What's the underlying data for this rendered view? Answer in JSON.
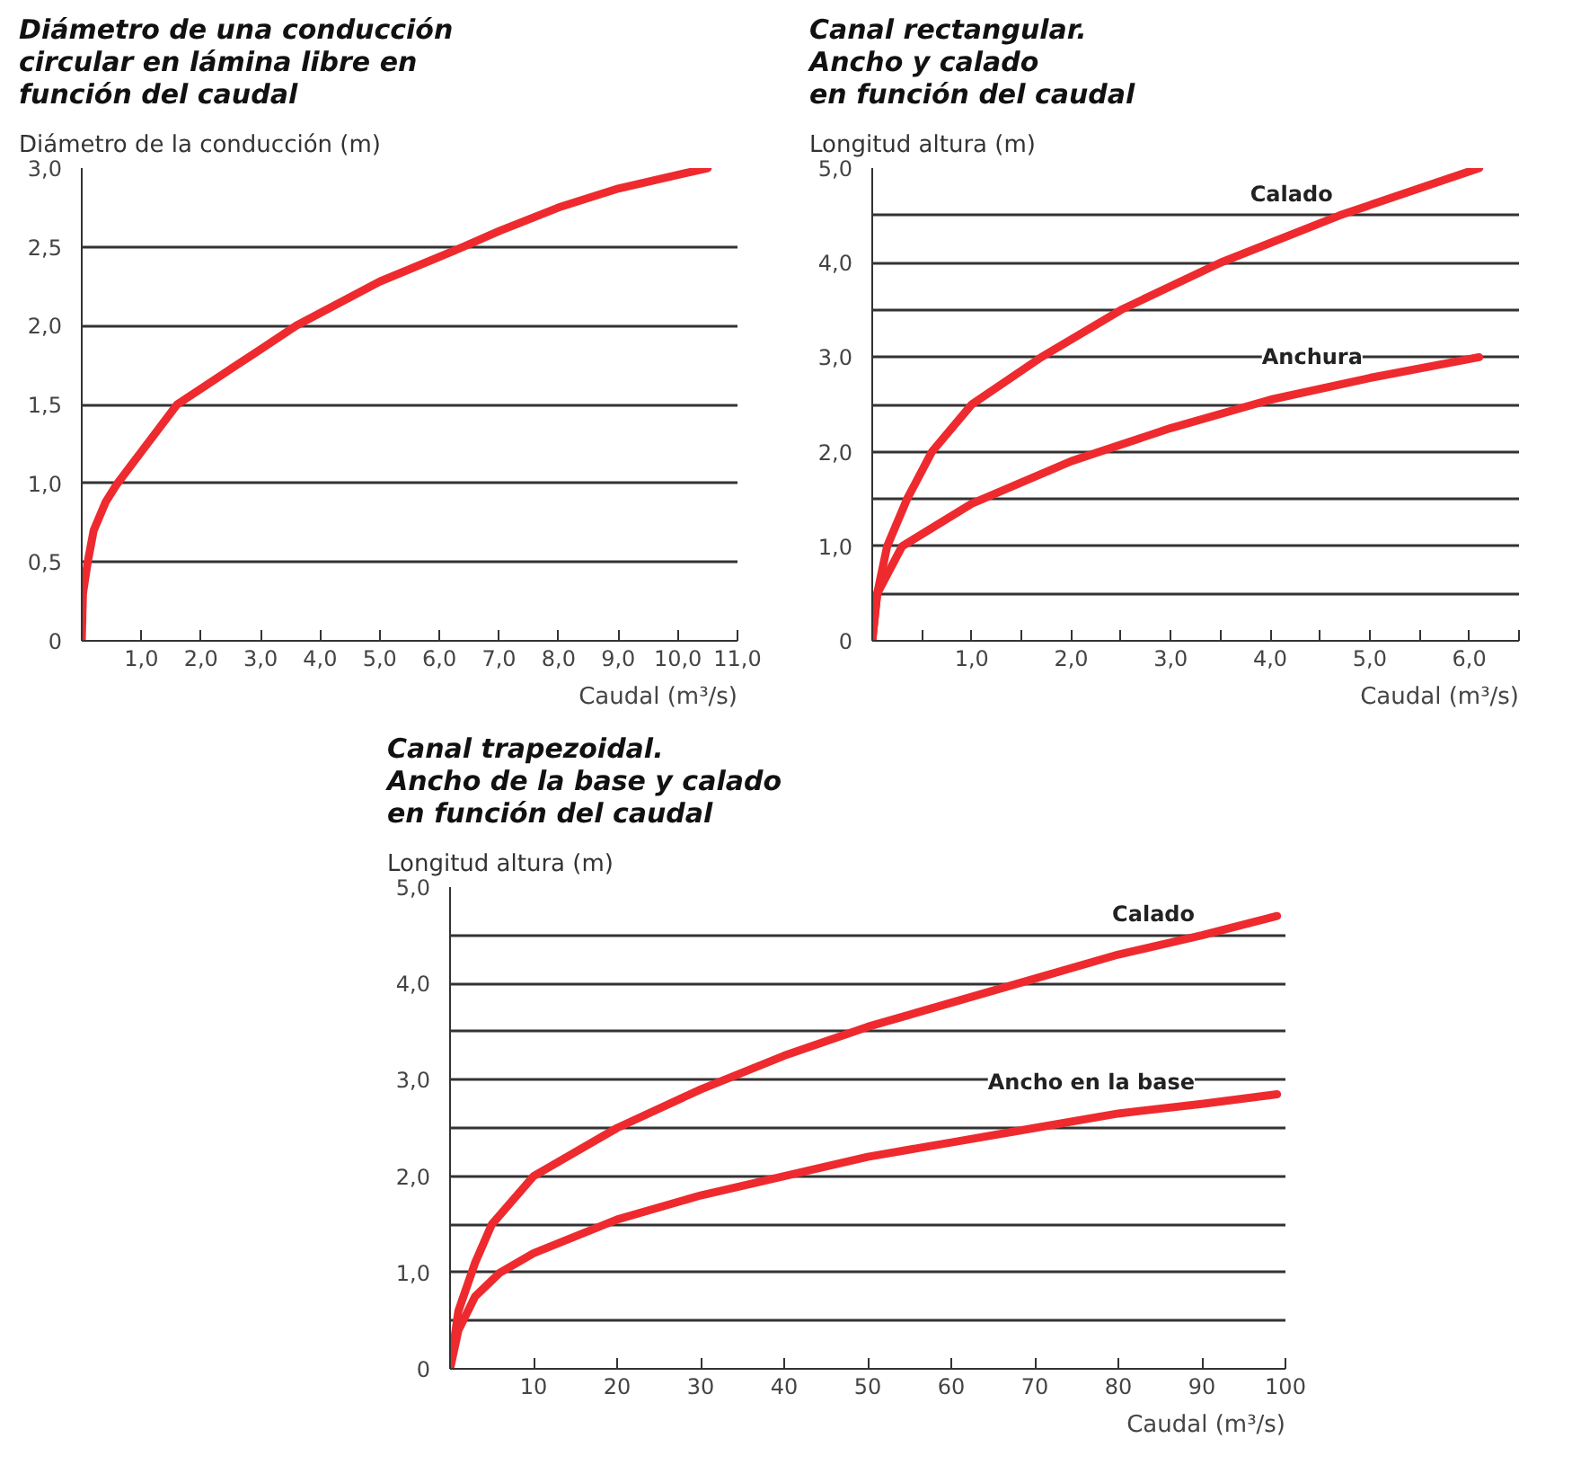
{
  "chart_data": [
    {
      "type": "line",
      "title": "Diámetro de una conducción\ncircular en lámina libre en\nfunción del caudal",
      "ylabel": "Diámetro de la conducción (m)",
      "xlabel": "Caudal (m³/s)",
      "grid": "y",
      "marker": "none",
      "line_style": "solid",
      "legend": false,
      "xlim": [
        0,
        11
      ],
      "ylim": [
        0,
        3
      ],
      "xticks": [
        {
          "value": 0,
          "label": null
        },
        {
          "value": 1,
          "label": "1,0"
        },
        {
          "value": 2,
          "label": "2,0"
        },
        {
          "value": 3,
          "label": "3,0"
        },
        {
          "value": 4,
          "label": "4,0"
        },
        {
          "value": 5,
          "label": "5,0"
        },
        {
          "value": 6,
          "label": "6,0"
        },
        {
          "value": 7,
          "label": "7,0"
        },
        {
          "value": 8,
          "label": "8,0"
        },
        {
          "value": 9,
          "label": "9,0"
        },
        {
          "value": 10,
          "label": "10,0"
        },
        {
          "value": 11,
          "label": "11,0"
        }
      ],
      "yticks": [
        0,
        {
          "value": 0.5,
          "label": "0,5"
        },
        {
          "value": 1,
          "label": "1,0"
        },
        {
          "value": 1.5,
          "label": "1,5"
        },
        {
          "value": 2,
          "label": "2,0"
        },
        {
          "value": 2.5,
          "label": "2,5"
        },
        {
          "value": 3,
          "label": "3,0"
        }
      ],
      "series": [
        {
          "color": "#ee2a2e",
          "x": [
            0,
            0.02,
            0.1,
            0.2,
            0.4,
            0.6,
            1.0,
            1.6,
            2.0,
            3.0,
            3.6,
            4.0,
            5.0,
            6.4,
            7.0,
            8.0,
            9.0,
            10.5
          ],
          "values": [
            0,
            0.3,
            0.5,
            0.7,
            0.88,
            1.0,
            1.2,
            1.5,
            1.6,
            1.85,
            2.0,
            2.08,
            2.28,
            2.5,
            2.6,
            2.75,
            2.87,
            3.0
          ]
        }
      ]
    },
    {
      "type": "line",
      "title": "Canal rectangular.\nAncho y calado\nen función del caudal",
      "ylabel": "Longitud altura (m)",
      "xlabel": "Caudal (m³/s)",
      "grid": "y",
      "marker": "none",
      "line_style": "solid",
      "legend": false,
      "xlim": [
        0,
        6.5
      ],
      "ylim": [
        0,
        5
      ],
      "xticks": [
        {
          "value": 0,
          "label": null
        },
        {
          "value": 0.5,
          "label": null
        },
        {
          "value": 1,
          "label": "1,0"
        },
        {
          "value": 1.5,
          "label": null
        },
        {
          "value": 2,
          "label": "2,0"
        },
        {
          "value": 2.5,
          "label": null
        },
        {
          "value": 3,
          "label": "3,0"
        },
        {
          "value": 3.5,
          "label": null
        },
        {
          "value": 4,
          "label": "4,0"
        },
        {
          "value": 4.5,
          "label": null
        },
        {
          "value": 5,
          "label": "5,0"
        },
        {
          "value": 5.5,
          "label": null
        },
        {
          "value": 6,
          "label": "6,0"
        },
        {
          "value": 6.5,
          "label": null
        }
      ],
      "yticks": [
        0,
        {
          "value": 0.5,
          "label": null
        },
        {
          "value": 1,
          "label": "1,0"
        },
        {
          "value": 1.5,
          "label": null
        },
        {
          "value": 2,
          "label": "2,0"
        },
        {
          "value": 2.5,
          "label": null
        },
        {
          "value": 3,
          "label": "3,0"
        },
        {
          "value": 3.5,
          "label": null
        },
        {
          "value": 4,
          "label": "4,0"
        },
        {
          "value": 4.5,
          "label": null
        },
        {
          "value": 5,
          "label": "5,0"
        }
      ],
      "series": [
        {
          "name": "Calado",
          "color": "#ee2a2e",
          "x": [
            0,
            0.05,
            0.15,
            0.35,
            0.6,
            1.0,
            1.7,
            2.5,
            3.5,
            4.7,
            6.1
          ],
          "values": [
            0,
            0.5,
            1.0,
            1.5,
            2.0,
            2.5,
            3.0,
            3.5,
            4.0,
            4.5,
            5.0
          ]
        },
        {
          "name": "Anchura",
          "color": "#ee2a2e",
          "x": [
            0,
            0.05,
            0.3,
            1.0,
            2.0,
            3.0,
            4.0,
            5.0,
            6.1
          ],
          "values": [
            0,
            0.5,
            1.0,
            1.45,
            1.9,
            2.25,
            2.55,
            2.78,
            3.0
          ]
        }
      ]
    },
    {
      "type": "line",
      "title": "Canal trapezoidal.\nAncho de la base y calado\nen función del caudal",
      "ylabel": "Longitud altura (m)",
      "xlabel": "Caudal (m³/s)",
      "grid": "y",
      "marker": "none",
      "line_style": "solid",
      "legend": false,
      "xlim": [
        0,
        100
      ],
      "ylim": [
        0,
        5
      ],
      "xticks": [
        {
          "value": 0,
          "label": null
        },
        10,
        20,
        30,
        40,
        50,
        60,
        70,
        80,
        90,
        100
      ],
      "yticks": [
        0,
        {
          "value": 0.5,
          "label": null
        },
        {
          "value": 1,
          "label": "1,0"
        },
        {
          "value": 1.5,
          "label": null
        },
        {
          "value": 2,
          "label": "2,0"
        },
        {
          "value": 2.5,
          "label": null
        },
        {
          "value": 3,
          "label": "3,0"
        },
        {
          "value": 3.5,
          "label": null
        },
        {
          "value": 4,
          "label": "4,0"
        },
        {
          "value": 4.5,
          "label": null
        },
        {
          "value": 5,
          "label": "5,0"
        }
      ],
      "series": [
        {
          "name": "Calado",
          "color": "#ee2a2e",
          "x": [
            0,
            1,
            3,
            5,
            10,
            20,
            30,
            40,
            50,
            60,
            70,
            80,
            90,
            99
          ],
          "values": [
            0,
            0.6,
            1.1,
            1.5,
            2.0,
            2.5,
            2.9,
            3.25,
            3.55,
            3.8,
            4.05,
            4.3,
            4.5,
            4.7
          ]
        },
        {
          "name": "Ancho en la base",
          "color": "#ee2a2e",
          "x": [
            0,
            1,
            3,
            6,
            10,
            20,
            30,
            40,
            50,
            60,
            70,
            80,
            90,
            99
          ],
          "values": [
            0,
            0.4,
            0.75,
            1.0,
            1.2,
            1.55,
            1.8,
            2.0,
            2.2,
            2.35,
            2.5,
            2.65,
            2.75,
            2.85
          ]
        }
      ]
    }
  ]
}
